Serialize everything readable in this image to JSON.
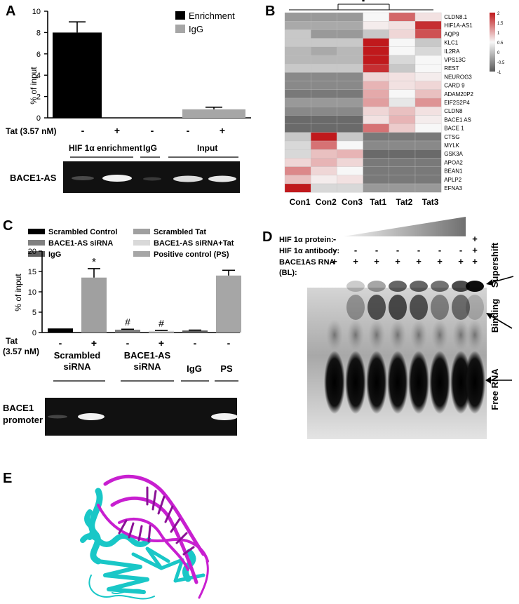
{
  "panels": {
    "A": {
      "label": "A",
      "chart_data": {
        "type": "bar",
        "ylabel": "% of input",
        "ylim": [
          0,
          10
        ],
        "yticks": [
          0,
          2,
          4,
          6,
          8,
          10
        ],
        "series": [
          {
            "name": "Enrichment",
            "values": [
              8.0
            ],
            "error": [
              1.0
            ],
            "color": "#000000"
          },
          {
            "name": "IgG",
            "values": [
              0.8
            ],
            "error": [
              0.2
            ],
            "color": "#a6a6a6"
          }
        ],
        "tat_label": "Tat (3.57 nM)",
        "tat_marks": [
          "-",
          "+",
          "-",
          "-",
          "+"
        ]
      },
      "gel": {
        "groups": [
          "HIF 1α enrichment",
          "IgG",
          "Input"
        ],
        "row_label": "BACE1-AS"
      }
    },
    "B": {
      "label": "B",
      "star": "*",
      "chart_data": {
        "type": "heatmap",
        "columns": [
          "Con1",
          "Con2",
          "Con3",
          "Tat1",
          "Tat2",
          "Tat3"
        ],
        "rows": [
          "CLDN8.1",
          "HIF1A-AS1",
          "AQP9",
          "KLC1",
          "IL2RA",
          "VPS13C",
          "REST",
          "NEUROG3",
          "CARD 9",
          "ADAM20P2",
          "EIF2S2P4",
          "CLDN8",
          "BACE1 AS",
          "BACE 1",
          "CTSG",
          "MYLK",
          "GSK3A",
          "APOA2",
          "BEAN1",
          "APLP2",
          "EFNA3"
        ],
        "values": [
          [
            -0.6,
            -0.6,
            -0.6,
            0.0,
            1.3,
            0.2
          ],
          [
            -0.5,
            -0.5,
            -0.5,
            0.1,
            0.2,
            1.8
          ],
          [
            -0.3,
            -0.6,
            -0.6,
            -0.3,
            0.3,
            1.5
          ],
          [
            -0.3,
            -0.3,
            -0.3,
            2.0,
            0.0,
            -0.3
          ],
          [
            -0.4,
            -0.5,
            -0.4,
            2.0,
            0.0,
            -0.2
          ],
          [
            -0.4,
            -0.4,
            -0.4,
            2.0,
            -0.2,
            0.0
          ],
          [
            -0.3,
            -0.3,
            -0.3,
            1.8,
            -0.3,
            0.0
          ],
          [
            -0.7,
            -0.7,
            -0.7,
            0.3,
            0.2,
            0.1
          ],
          [
            -0.7,
            -0.7,
            -0.7,
            0.6,
            0.2,
            0.3
          ],
          [
            -0.8,
            -0.8,
            -0.8,
            0.7,
            0.0,
            0.5
          ],
          [
            -0.6,
            -0.6,
            -0.6,
            0.8,
            -0.1,
            0.9
          ],
          [
            -0.7,
            -0.7,
            -0.7,
            0.3,
            0.5,
            0.2
          ],
          [
            -0.9,
            -0.9,
            -0.9,
            0.2,
            0.6,
            0.1
          ],
          [
            -0.9,
            -0.9,
            -0.9,
            1.2,
            0.4,
            0.0
          ],
          [
            -0.3,
            2.0,
            -0.3,
            -0.8,
            -0.8,
            -0.8
          ],
          [
            -0.2,
            1.2,
            0.0,
            -0.7,
            -0.7,
            -0.7
          ],
          [
            -0.2,
            0.5,
            0.6,
            -0.9,
            -0.9,
            -0.9
          ],
          [
            0.3,
            0.6,
            0.3,
            -0.8,
            -0.8,
            -0.8
          ],
          [
            1.0,
            0.3,
            0.0,
            -0.8,
            -0.8,
            -0.8
          ],
          [
            0.5,
            0.1,
            0.2,
            -0.8,
            -0.8,
            -0.8
          ],
          [
            2.0,
            -0.2,
            -0.2,
            -0.6,
            -0.6,
            -0.6
          ]
        ],
        "colorbar_ticks": [
          "2",
          "1.5",
          "1",
          "0.5",
          "0",
          "-0.5",
          "-1"
        ],
        "colorbar_values": [
          2,
          1.5,
          1,
          0.5,
          0,
          -0.5,
          -1
        ],
        "colors": {
          "high": "#c0191c",
          "mid": "#f7f7f7",
          "low": "#5a5a5a"
        }
      }
    },
    "C": {
      "label": "C",
      "chart_data": {
        "type": "bar",
        "ylabel": "% of input",
        "ylim": [
          0,
          20
        ],
        "yticks": [
          0,
          5,
          10,
          15,
          20
        ],
        "legend": [
          {
            "name": "Scrambled Control",
            "color": "#000000"
          },
          {
            "name": "Scrambled Tat",
            "color": "#a0a0a0"
          },
          {
            "name": "BACE1-AS siRNA",
            "color": "#808080"
          },
          {
            "name": "BACE1-AS siRNA+Tat",
            "color": "#d9d9d9"
          },
          {
            "name": "IgG",
            "color": "#606060"
          },
          {
            "name": "Positive control (PS)",
            "color": "#a6a6a6"
          }
        ],
        "series": [
          {
            "name": "Scrambled Control",
            "values": [
              1.0
            ],
            "error": [
              0.0
            ]
          },
          {
            "name": "Scrambled Tat",
            "values": [
              13.5
            ],
            "error": [
              2.2
            ]
          },
          {
            "name": "BACE1-AS siRNA",
            "values": [
              0.7
            ],
            "error": [
              0.1
            ]
          },
          {
            "name": "BACE1-AS siRNA+Tat",
            "values": [
              0.4
            ],
            "error": [
              0.1
            ]
          },
          {
            "name": "IgG",
            "values": [
              0.5
            ],
            "error": [
              0.1
            ]
          },
          {
            "name": "Positive control (PS)",
            "values": [
              14.0
            ],
            "error": [
              1.3
            ]
          }
        ],
        "annotations": [
          "*",
          "#",
          "#"
        ],
        "tat_label": "Tat",
        "tat_unit": "(3.57 nM)",
        "tat_marks": [
          "-",
          "+",
          "-",
          "+",
          "-",
          "-"
        ]
      },
      "gel": {
        "groups": [
          [
            "Scrambled",
            "siRNA"
          ],
          [
            "BACE1-AS",
            "siRNA"
          ],
          [
            "IgG"
          ],
          [
            "PS"
          ]
        ],
        "row_label": [
          "BACE1",
          "promoter"
        ]
      }
    },
    "D": {
      "label": "D",
      "rows": [
        {
          "label": "HIF 1α protein:",
          "marks": [
            "-",
            "",
            "",
            "",
            "",
            "",
            "",
            "+"
          ]
        },
        {
          "label": "HIF 1α antibody:",
          "marks": [
            "-",
            "-",
            "-",
            "-",
            "-",
            "-",
            "-",
            "+"
          ]
        },
        {
          "label": "BACE1AS RNA",
          "marks": [
            "+",
            "+",
            "+",
            "+",
            "+",
            "+",
            "+",
            "+"
          ]
        },
        {
          "label": "(BL):",
          "marks": []
        }
      ],
      "annotations": [
        "Supershift",
        "Binding",
        "Free RNA"
      ]
    },
    "E": {
      "label": "E",
      "colors": {
        "rna": "#c81fd0",
        "protein": "#19c7c7"
      }
    }
  }
}
